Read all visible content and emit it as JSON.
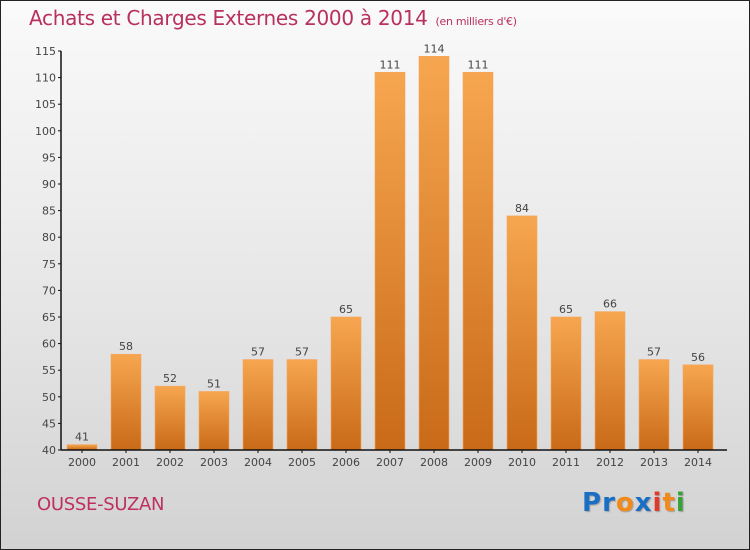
{
  "header": {
    "title": "Achats et Charges Externes 2000 à 2014",
    "unit": "(en milliers d'€)"
  },
  "footer": {
    "city": "OUSSE-SUZAN",
    "logo": {
      "letters": [
        "P",
        "r",
        "o",
        "x",
        "i",
        "t",
        "i"
      ],
      "colors": [
        "#1a6fc4",
        "#1a6fc4",
        "#f28a1a",
        "#1a6fc4",
        "#e03a2a",
        "#f28a1a",
        "#3aa03a"
      ]
    }
  },
  "colors": {
    "bar_top": "#f7a650",
    "bar_bottom": "#c96a18",
    "title": "#b8305e"
  },
  "chart_data": {
    "type": "bar",
    "title": "Achats et Charges Externes 2000 à 2014",
    "subtitle": "(en milliers d'€)",
    "xlabel": "",
    "ylabel": "",
    "categories": [
      "2000",
      "2001",
      "2002",
      "2003",
      "2004",
      "2005",
      "2006",
      "2007",
      "2008",
      "2009",
      "2010",
      "2011",
      "2012",
      "2013",
      "2014"
    ],
    "values": [
      41,
      58,
      52,
      51,
      57,
      57,
      65,
      111,
      114,
      111,
      84,
      65,
      66,
      57,
      56
    ],
    "ylim": [
      40,
      115
    ],
    "yticks": [
      40,
      45,
      50,
      55,
      60,
      65,
      70,
      75,
      80,
      85,
      90,
      95,
      100,
      105,
      110,
      115
    ],
    "grid": false,
    "legend": "none"
  }
}
